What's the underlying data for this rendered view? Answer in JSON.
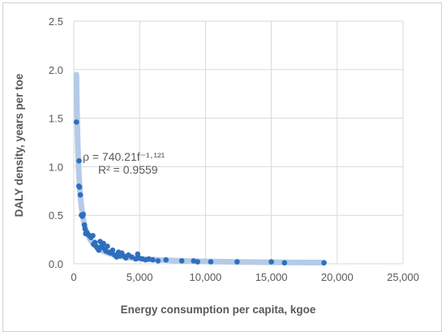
{
  "chart_data": {
    "type": "scatter",
    "title": "",
    "xlabel": "Energy consumption per capita, kgoe",
    "ylabel": "DALY density, years per toe",
    "xlim": [
      0,
      25000
    ],
    "ylim": [
      0,
      2.5
    ],
    "x_ticks": [
      0,
      5000,
      10000,
      15000,
      20000,
      25000
    ],
    "x_tick_labels": [
      "0",
      "5,000",
      "10,000",
      "15,000",
      "20,000",
      "25,000"
    ],
    "y_ticks": [
      0,
      0.5,
      1.0,
      1.5,
      2.0,
      2.5
    ],
    "y_tick_labels": [
      "0.0",
      "0.5",
      "1.0",
      "1.5",
      "2.0",
      "2.5"
    ],
    "grid": true,
    "legend": "none",
    "colors": {
      "points": "#2e6fbd",
      "trendline": "#b4cbe8",
      "grid": "#d9d9d9",
      "text": "#595959"
    },
    "trendline": {
      "model": "power",
      "coefficient": 740.21,
      "exponent": -1.121,
      "x_range": [
        200,
        19000
      ],
      "equation_label": "ρ = 740.21f⁻¹·¹²¹",
      "r2_label": "R² = 0.9559"
    },
    "series": [
      {
        "points": [
          [
            200,
            1.46
          ],
          [
            400,
            1.06
          ],
          [
            380,
            0.8
          ],
          [
            430,
            0.79
          ],
          [
            500,
            0.71
          ],
          [
            580,
            0.5
          ],
          [
            650,
            0.49
          ],
          [
            720,
            0.51
          ],
          [
            800,
            0.4
          ],
          [
            850,
            0.36
          ],
          [
            900,
            0.31
          ],
          [
            1000,
            0.32
          ],
          [
            1100,
            0.3
          ],
          [
            1200,
            0.29
          ],
          [
            1300,
            0.27
          ],
          [
            1450,
            0.29
          ],
          [
            1500,
            0.2
          ],
          [
            1600,
            0.22
          ],
          [
            1700,
            0.18
          ],
          [
            1800,
            0.16
          ],
          [
            1900,
            0.14
          ],
          [
            2000,
            0.23
          ],
          [
            2050,
            0.17
          ],
          [
            2150,
            0.19
          ],
          [
            2250,
            0.21
          ],
          [
            2350,
            0.15
          ],
          [
            2450,
            0.13
          ],
          [
            2550,
            0.18
          ],
          [
            2650,
            0.12
          ],
          [
            2800,
            0.11
          ],
          [
            2950,
            0.14
          ],
          [
            3100,
            0.09
          ],
          [
            3250,
            0.07
          ],
          [
            3400,
            0.12
          ],
          [
            3500,
            0.08
          ],
          [
            3650,
            0.11
          ],
          [
            3800,
            0.08
          ],
          [
            3950,
            0.06
          ],
          [
            4150,
            0.09
          ],
          [
            4400,
            0.07
          ],
          [
            4700,
            0.05
          ],
          [
            4850,
            0.1
          ],
          [
            4950,
            0.06
          ],
          [
            5200,
            0.05
          ],
          [
            5450,
            0.04
          ],
          [
            5700,
            0.05
          ],
          [
            6000,
            0.04
          ],
          [
            6400,
            0.03
          ],
          [
            7000,
            0.04
          ],
          [
            8200,
            0.03
          ],
          [
            9100,
            0.03
          ],
          [
            9400,
            0.02
          ],
          [
            10400,
            0.02
          ],
          [
            12400,
            0.02
          ],
          [
            15000,
            0.02
          ],
          [
            16000,
            0.01
          ],
          [
            19000,
            0.01
          ]
        ]
      }
    ]
  }
}
